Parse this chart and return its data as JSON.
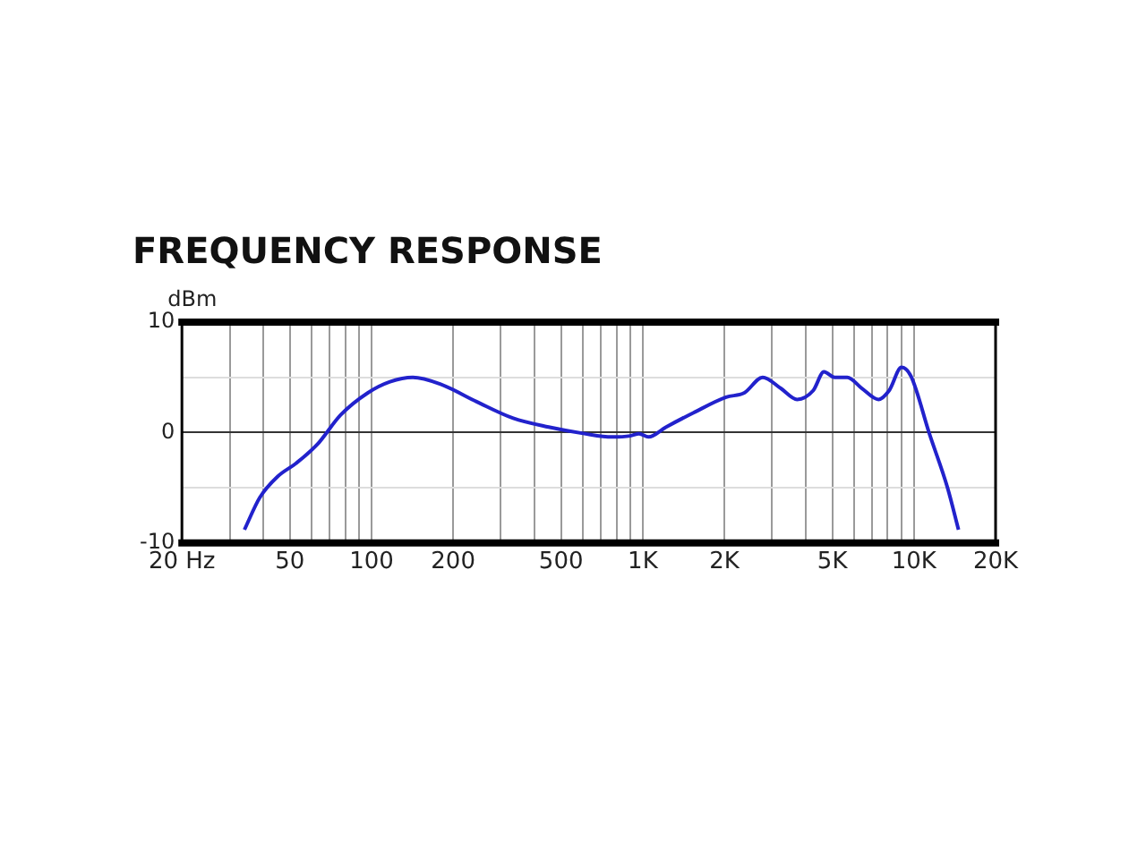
{
  "chart_data": {
    "type": "line",
    "title": "FREQUENCY RESPONSE",
    "ylabel": "dBm",
    "log": "x",
    "grid": true,
    "legend": false,
    "marker": "none",
    "line_style": "solid",
    "xlim": [
      20,
      20000
    ],
    "ylim": [
      -10,
      10
    ],
    "xticks": [
      {
        "value": 20,
        "label": "20 Hz"
      },
      {
        "value": 30,
        "label": null
      },
      {
        "value": 40,
        "label": null
      },
      50,
      {
        "value": 60,
        "label": null
      },
      {
        "value": 70,
        "label": null
      },
      {
        "value": 80,
        "label": null
      },
      {
        "value": 90,
        "label": null
      },
      100,
      200,
      {
        "value": 300,
        "label": null
      },
      {
        "value": 400,
        "label": null
      },
      500,
      {
        "value": 600,
        "label": null
      },
      {
        "value": 700,
        "label": null
      },
      {
        "value": 800,
        "label": null
      },
      {
        "value": 900,
        "label": null
      },
      {
        "value": 1000,
        "label": "1K"
      },
      {
        "value": 2000,
        "label": "2K"
      },
      {
        "value": 3000,
        "label": null
      },
      {
        "value": 4000,
        "label": null
      },
      {
        "value": 5000,
        "label": "5K"
      },
      {
        "value": 6000,
        "label": null
      },
      {
        "value": 7000,
        "label": null
      },
      {
        "value": 8000,
        "label": null
      },
      {
        "value": 9000,
        "label": null
      },
      {
        "value": 10000,
        "label": "10K"
      },
      {
        "value": 20000,
        "label": "20K"
      }
    ],
    "yticks": [
      -10,
      {
        "value": -5,
        "label": null
      },
      0,
      {
        "value": 5,
        "label": null
      },
      10
    ],
    "x": [
      34,
      38.7,
      45,
      52.6,
      63,
      77,
      97,
      117,
      142,
      179,
      244,
      333,
      450,
      610,
      770,
      900,
      970,
      1050,
      1220,
      1540,
      2030,
      2370,
      2770,
      3230,
      3710,
      4250,
      4660,
      5100,
      5680,
      6430,
      7400,
      8100,
      9000,
      9750,
      11400,
      13300,
      14600
    ],
    "series": [
      {
        "color": "#2222cc",
        "values": [
          -8.8,
          -5.9,
          -4,
          -2.8,
          -1.1,
          1.6,
          3.6,
          4.6,
          5.0,
          4.4,
          2.8,
          1.3,
          0.5,
          -0.1,
          -0.4,
          -0.3,
          -0.1,
          -0.4,
          0.5,
          1.8,
          3.2,
          3.6,
          5.0,
          4.0,
          3.0,
          3.8,
          5.5,
          5.0,
          5.0,
          4.0,
          3.0,
          3.8,
          5.9,
          5.1,
          -0.1,
          -5,
          -8.8
        ]
      }
    ]
  }
}
